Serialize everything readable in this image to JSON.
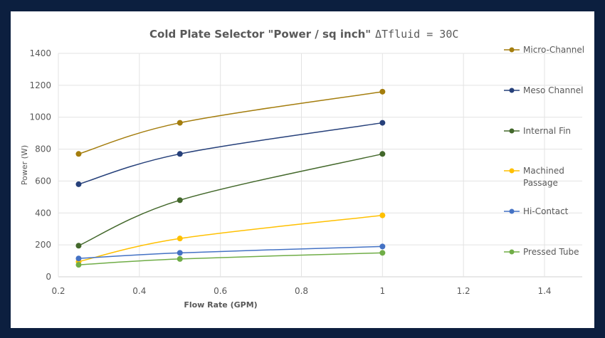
{
  "chart_data": {
    "type": "line",
    "title": "Cold Plate Selector  \"Power / sq inch\"",
    "subtitle": "ΔTfluid = 30C",
    "xlabel": "Flow Rate (GPM)",
    "ylabel": "Power (W)",
    "xlim": [
      0.2,
      1.4
    ],
    "ylim": [
      0,
      1400
    ],
    "xticks": [
      "0.2",
      "0.4",
      "0.6",
      "0.8",
      "1",
      "1.2",
      "1.4"
    ],
    "yticks": [
      "0",
      "200",
      "400",
      "600",
      "800",
      "1000",
      "1200",
      "1400"
    ],
    "grid": true,
    "smoothed": true,
    "legend_placement": "right",
    "x": [
      0.25,
      0.5,
      1.0
    ],
    "series": [
      {
        "name": "Micro-Channel",
        "legend_lines": [
          "Micro-Channel"
        ],
        "color": "#a47d0d",
        "values": [
          770,
          965,
          1160
        ]
      },
      {
        "name": "Meso Channel",
        "legend_lines": [
          "Meso Channel"
        ],
        "color": "#26407a",
        "values": [
          580,
          770,
          965
        ]
      },
      {
        "name": "Internal Fin",
        "legend_lines": [
          "Internal Fin"
        ],
        "color": "#43682b",
        "values": [
          195,
          480,
          770
        ]
      },
      {
        "name": "Machined Passage",
        "legend_lines": [
          "Machined",
          "Passage"
        ],
        "color": "#ffc000",
        "values": [
          95,
          240,
          385
        ]
      },
      {
        "name": "Hi-Contact",
        "legend_lines": [
          "Hi-Contact"
        ],
        "color": "#4472c4",
        "values": [
          115,
          150,
          190
        ]
      },
      {
        "name": "Pressed Tube",
        "legend_lines": [
          "Pressed Tube"
        ],
        "color": "#70ad47",
        "values": [
          75,
          112,
          150
        ]
      }
    ]
  }
}
